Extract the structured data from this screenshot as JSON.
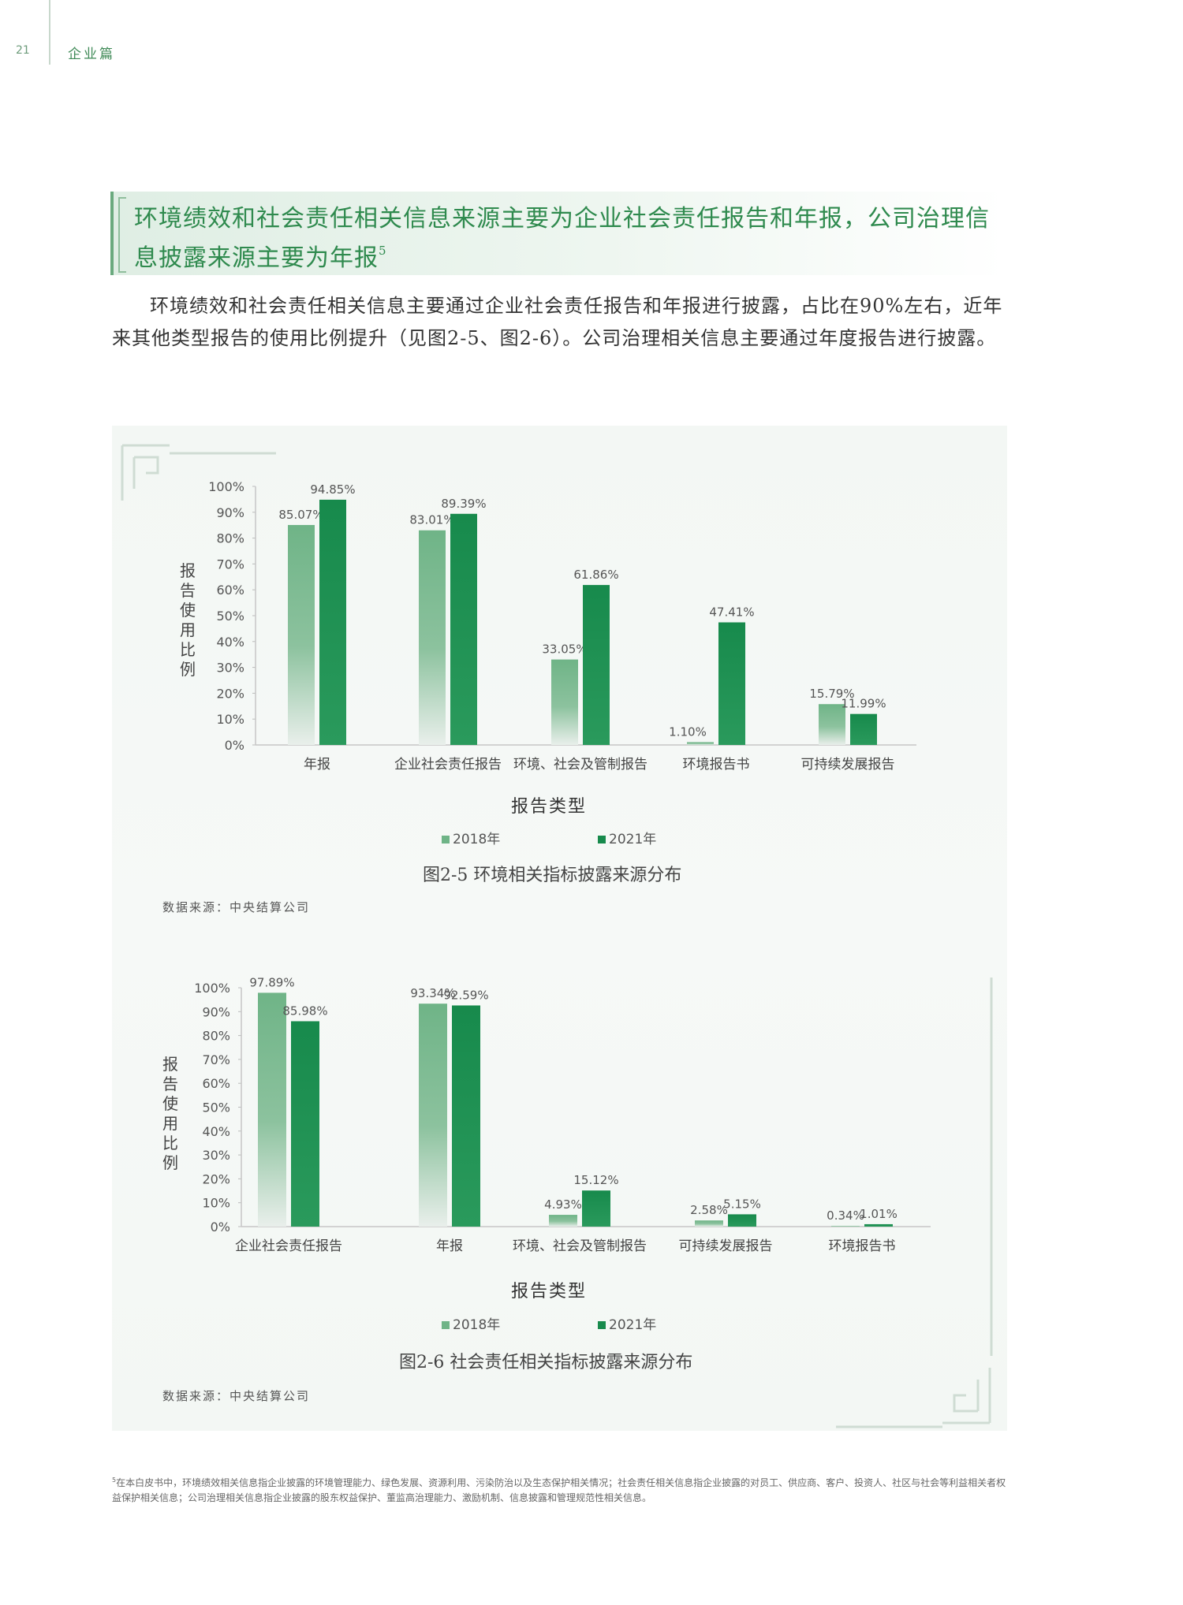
{
  "header": {
    "page_number": "21",
    "section": "企业篇"
  },
  "heading": {
    "text": "环境绩效和社会责任相关信息来源主要为企业社会责任报告和年报，公司治理信息披露来源主要为年报",
    "footnote_mark": "5"
  },
  "body": {
    "paragraph": "环境绩效和社会责任相关信息主要通过企业社会责任报告和年报进行披露，占比在90%左右，近年来其他类型报告的使用比例提升（见图2-5、图2-6）。公司治理相关信息主要通过年度报告进行披露。"
  },
  "colors": {
    "series_2018": "#6fb487",
    "series_2021": "#178a4c",
    "accent": "#2f8a4e"
  },
  "chart_data": [
    {
      "type": "bar",
      "title": "图2-5 环境相关指标披露来源分布",
      "xlabel": "报告类型",
      "ylabel": "报告使用比例",
      "ylim": [
        0,
        100
      ],
      "yticks": [
        "0%",
        "10%",
        "20%",
        "30%",
        "40%",
        "50%",
        "60%",
        "70%",
        "80%",
        "90%",
        "100%"
      ],
      "categories": [
        "年报",
        "企业社会责任报告",
        "环境、社会及管制报告",
        "环境报告书",
        "可持续发展报告"
      ],
      "series": [
        {
          "name": "2018年",
          "values": [
            85.07,
            83.01,
            33.05,
            1.1,
            15.79
          ],
          "labels": [
            "85.07%",
            "83.01%",
            "33.05%",
            "1.10%",
            "15.79%"
          ]
        },
        {
          "name": "2021年",
          "values": [
            94.85,
            89.39,
            61.86,
            47.41,
            11.99
          ],
          "labels": [
            "94.85%",
            "89.39%",
            "61.86%",
            "47.41%",
            "11.99%"
          ]
        }
      ],
      "legend": "bottom",
      "grid": false,
      "source": "数据来源：中央结算公司"
    },
    {
      "type": "bar",
      "title": "图2-6 社会责任相关指标披露来源分布",
      "xlabel": "报告类型",
      "ylabel": "报告使用比例",
      "ylim": [
        0,
        100
      ],
      "yticks": [
        "0%",
        "10%",
        "20%",
        "30%",
        "40%",
        "50%",
        "60%",
        "70%",
        "80%",
        "90%",
        "100%"
      ],
      "categories": [
        "企业社会责任报告",
        "年报",
        "环境、社会及管制报告",
        "可持续发展报告",
        "环境报告书"
      ],
      "series": [
        {
          "name": "2018年",
          "values": [
            97.89,
            93.34,
            4.93,
            2.58,
            0.34
          ],
          "labels": [
            "97.89%",
            "93.34%",
            "4.93%",
            "2.58%",
            "0.34%"
          ]
        },
        {
          "name": "2021年",
          "values": [
            85.98,
            92.59,
            15.12,
            5.15,
            1.01
          ],
          "labels": [
            "85.98%",
            "92.59%",
            "15.12%",
            "5.15%",
            "1.01%"
          ]
        }
      ],
      "legend": "bottom",
      "grid": false,
      "source": "数据来源：中央结算公司"
    }
  ],
  "footnote": {
    "mark": "5",
    "text": "在本白皮书中，环境绩效相关信息指企业披露的环境管理能力、绿色发展、资源利用、污染防治以及生态保护相关情况；社会责任相关信息指企业披露的对员工、供应商、客户、投资人、社区与社会等利益相关者权益保护相关信息；公司治理相关信息指企业披露的股东权益保护、董监高治理能力、激励机制、信息披露和管理规范性相关信息。"
  }
}
